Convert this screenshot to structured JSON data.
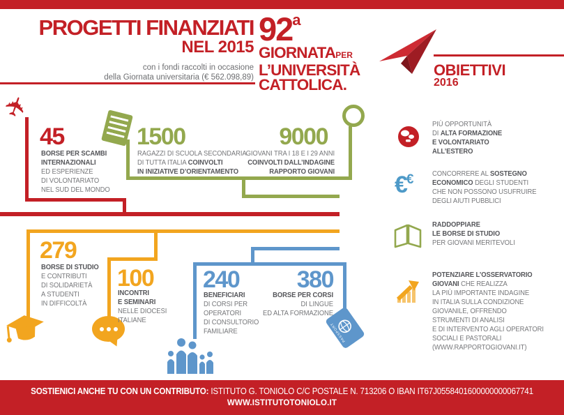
{
  "colors": {
    "red": "#C32026",
    "green": "#93A84E",
    "orange": "#F2A51F",
    "blue": "#5E96CB",
    "euro_blue": "#4E9AC8",
    "text_gray": "#77787B",
    "text_dark": "#55565A"
  },
  "header": {
    "title_line1": "PROGETTI FINANZIATI",
    "title_line2": "NEL 2015",
    "subtitle_line1": "con i fondi raccolti in occasione",
    "subtitle_line2": "della Giornata universitaria (€ 562.098,89)"
  },
  "event": {
    "number": "92",
    "sup": "a",
    "word1": "GIORNATA",
    "word1_small": "PER",
    "word2": "L’UNIVERSITÀ",
    "word3": "CATTOLICA."
  },
  "objectives": {
    "title": "OBIETTIVI",
    "year": "2016",
    "items": [
      {
        "icon": "globe-icon",
        "lines": [
          [
            {
              "t": "PIÙ OPPORTUNITÀ",
              "b": false
            }
          ],
          [
            {
              "t": "DI ",
              "b": false
            },
            {
              "t": "ALTA FORMAZIONE",
              "b": true
            }
          ],
          [
            {
              "t": "E VOLONTARIATO",
              "b": true
            }
          ],
          [
            {
              "t": "ALL’ESTERO",
              "b": true
            }
          ]
        ]
      },
      {
        "icon": "euro-icon",
        "lines": [
          [
            {
              "t": "CONCORRERE AL ",
              "b": false
            },
            {
              "t": "SOSTEGNO",
              "b": true
            }
          ],
          [
            {
              "t": "ECONOMICO",
              "b": true
            },
            {
              "t": " DEGLI STUDENTI",
              "b": false
            }
          ],
          [
            {
              "t": "CHE NON POSSONO USUFRUIRE",
              "b": false
            }
          ],
          [
            {
              "t": "DEGLI AIUTI PUBBLICI",
              "b": false
            }
          ]
        ]
      },
      {
        "icon": "book-icon",
        "lines": [
          [
            {
              "t": "RADDOPPIARE",
              "b": true
            }
          ],
          [
            {
              "t": "LE BORSE DI STUDIO",
              "b": true
            }
          ],
          [
            {
              "t": "PER GIOVANI MERITEVOLI",
              "b": false
            }
          ]
        ]
      },
      {
        "icon": "chart-icon",
        "lines": [
          [
            {
              "t": "POTENZIARE L’OSSERVATORIO",
              "b": true
            }
          ],
          [
            {
              "t": "GIOVANI",
              "b": true
            },
            {
              "t": " CHE REALIZZA",
              "b": false
            }
          ],
          [
            {
              "t": "LA PIÙ IMPORTANTE INDAGINE",
              "b": false
            }
          ],
          [
            {
              "t": "IN ITALIA SULLA CONDIZIONE",
              "b": false
            }
          ],
          [
            {
              "t": "GIOVANILE, OFFRENDO",
              "b": false
            }
          ],
          [
            {
              "t": "STRUMENTI DI ANALISI",
              "b": false
            }
          ],
          [
            {
              "t": "E DI INTERVENTO AGLI OPERATORI",
              "b": false
            }
          ],
          [
            {
              "t": "SOCIALI E PASTORALI",
              "b": false
            }
          ],
          [
            {
              "t": "(WWW.RAPPORTOGIOVANI.IT)",
              "b": false
            }
          ]
        ]
      }
    ]
  },
  "stats": [
    {
      "value": "45",
      "icon": "airplane-icon",
      "color": "#C32026",
      "lines": [
        [
          {
            "t": "BORSE PER SCAMBI",
            "b": true
          }
        ],
        [
          {
            "t": "INTERNAZIONALI",
            "b": true
          }
        ],
        [
          {
            "t": "ED ESPERIENZE",
            "b": false
          }
        ],
        [
          {
            "t": "DI VOLONTARIATO",
            "b": false
          }
        ],
        [
          {
            "t": "NEL SUD DEL MONDO",
            "b": false
          }
        ]
      ]
    },
    {
      "value": "1500",
      "icon": "notebook-icon",
      "color": "#93A84E",
      "lines": [
        [
          {
            "t": "RAGAZZI DI SCUOLA SECONDARIA",
            "b": false
          }
        ],
        [
          {
            "t": "DI TUTTA ITALIA ",
            "b": false
          },
          {
            "t": "COINVOLTI",
            "b": true
          }
        ],
        [
          {
            "t": "IN INIZIATIVE D’ORIENTAMENTO",
            "b": true
          }
        ]
      ]
    },
    {
      "value": "9000",
      "icon": "magnifier-icon",
      "color": "#93A84E",
      "lines": [
        [
          {
            "t": "GIOVANI TRA I 18 E I 29 ANNI",
            "b": false
          }
        ],
        [
          {
            "t": "COINVOLTI DALL’INDAGINE",
            "b": true
          }
        ],
        [
          {
            "t": "RAPPORTO GIOVANI",
            "b": true
          }
        ]
      ]
    },
    {
      "value": "279",
      "icon": "graduation-cap-icon",
      "color": "#F2A51F",
      "lines": [
        [
          {
            "t": "BORSE DI STUDIO",
            "b": true
          }
        ],
        [
          {
            "t": "E CONTRIBUTI",
            "b": false
          }
        ],
        [
          {
            "t": "DI SOLIDARIETÀ",
            "b": false
          }
        ],
        [
          {
            "t": "A STUDENTI",
            "b": false
          }
        ],
        [
          {
            "t": "IN DIFFICOLTÀ",
            "b": false
          }
        ]
      ]
    },
    {
      "value": "100",
      "icon": "speech-bubble-icon",
      "color": "#F2A51F",
      "lines": [
        [
          {
            "t": "INCONTRI",
            "b": true
          }
        ],
        [
          {
            "t": "E SEMINARI",
            "b": true
          }
        ],
        [
          {
            "t": "NELLE DIOCESI",
            "b": false
          }
        ],
        [
          {
            "t": "ITALIANE",
            "b": false
          }
        ]
      ]
    },
    {
      "value": "240",
      "icon": "family-icon",
      "color": "#5E96CB",
      "lines": [
        [
          {
            "t": "BENEFICIARI",
            "b": true
          }
        ],
        [
          {
            "t": "DI CORSI PER",
            "b": false
          }
        ],
        [
          {
            "t": "OPERATORI",
            "b": false
          }
        ],
        [
          {
            "t": "DI CONSULTORIO",
            "b": false
          }
        ],
        [
          {
            "t": "FAMILIARE",
            "b": false
          }
        ]
      ]
    },
    {
      "value": "380",
      "icon": "passport-icon",
      "color": "#5E96CB",
      "lines": [
        [
          {
            "t": "BORSE PER CORSI",
            "b": true
          }
        ],
        [
          {
            "t": "DI LINGUE",
            "b": false
          }
        ],
        [
          {
            "t": "ED ALTA FORMAZIONE",
            "b": false
          }
        ]
      ]
    }
  ],
  "icons": {
    "airplane_glyph": "✈",
    "euro_glyph": "€",
    "passport_label": "PASSPORT"
  },
  "footer": {
    "lead": "SOSTIENICI ANCHE TU CON UN CONTRIBUTO:",
    "rest": " ISTITUTO G. TONIOLO C/C POSTALE N. 713206 O IBAN IT67J0558401600000000067741",
    "website": "WWW.ISTITUTOTONIOLO.IT"
  }
}
